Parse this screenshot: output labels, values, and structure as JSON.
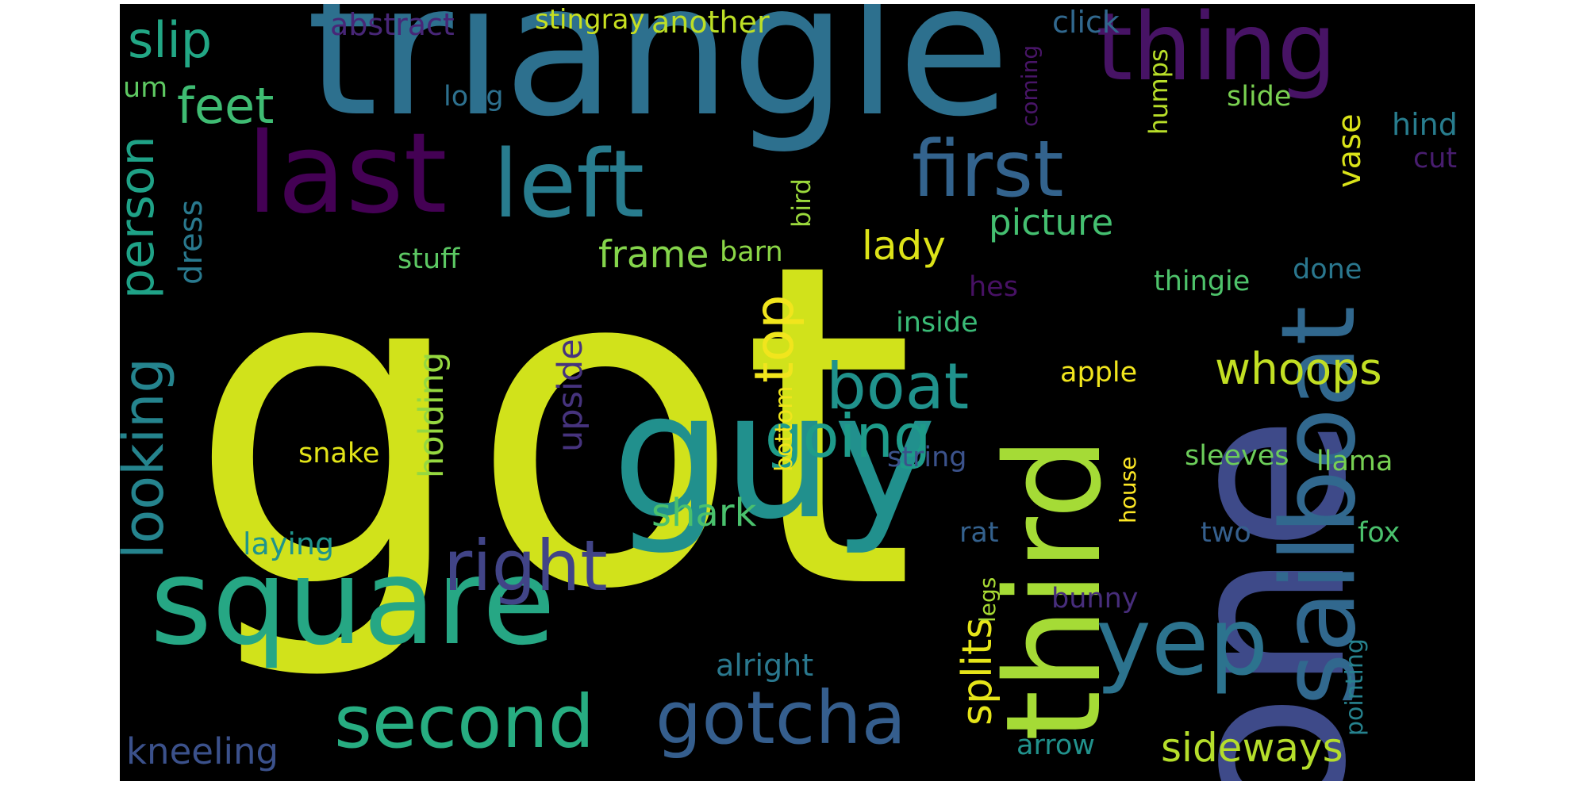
{
  "cloud": {
    "background": "#000000",
    "words": [
      {
        "text": "got",
        "color": "#d1e21b",
        "rotated": false
      },
      {
        "text": "one",
        "color": "#3e4a89",
        "rotated": true
      },
      {
        "text": "triangle",
        "color": "#2d708e",
        "rotated": false
      },
      {
        "text": "guy",
        "color": "#21908d",
        "rotated": false
      },
      {
        "text": "third",
        "color": "#a5db36",
        "rotated": true
      },
      {
        "text": "sailboat",
        "color": "#31688e",
        "rotated": true
      },
      {
        "text": "square",
        "color": "#26a784",
        "rotated": false
      },
      {
        "text": "last",
        "color": "#440154",
        "rotated": false
      },
      {
        "text": "thing",
        "color": "#471365",
        "rotated": false
      },
      {
        "text": "left",
        "color": "#287c8e",
        "rotated": false
      },
      {
        "text": "yep",
        "color": "#2c738e",
        "rotated": false
      },
      {
        "text": "first",
        "color": "#33638d",
        "rotated": false
      },
      {
        "text": "second",
        "color": "#27ad81",
        "rotated": false
      },
      {
        "text": "gotcha",
        "color": "#355e8d",
        "rotated": false
      },
      {
        "text": "right",
        "color": "#414487",
        "rotated": false
      },
      {
        "text": "looking",
        "color": "#25848e",
        "rotated": true
      },
      {
        "text": "person",
        "color": "#1fa287",
        "rotated": true
      },
      {
        "text": "boat",
        "color": "#20928c",
        "rotated": false
      },
      {
        "text": "going",
        "color": "#1e9b8a",
        "rotated": false
      },
      {
        "text": "top",
        "color": "#f1e51d",
        "rotated": true
      },
      {
        "text": "feet",
        "color": "#3fbc73",
        "rotated": false
      },
      {
        "text": "slip",
        "color": "#22a785",
        "rotated": false
      },
      {
        "text": "splits",
        "color": "#e5e419",
        "rotated": true
      },
      {
        "text": "whoops",
        "color": "#c2df23",
        "rotated": false
      },
      {
        "text": "sideways",
        "color": "#b5de2b",
        "rotated": false
      },
      {
        "text": "shark",
        "color": "#4ac16d",
        "rotated": false
      },
      {
        "text": "lady",
        "color": "#dde318",
        "rotated": false
      },
      {
        "text": "frame",
        "color": "#84d44b",
        "rotated": false
      },
      {
        "text": "picture",
        "color": "#44bf70",
        "rotated": false
      },
      {
        "text": "holding",
        "color": "#95d840",
        "rotated": true
      },
      {
        "text": "upside",
        "color": "#46337e",
        "rotated": true
      },
      {
        "text": "kneeling",
        "color": "#3b518b",
        "rotated": false
      },
      {
        "text": "dress",
        "color": "#29798e",
        "rotated": true
      },
      {
        "text": "vase",
        "color": "#dae319",
        "rotated": true
      },
      {
        "text": "abstract",
        "color": "#482677",
        "rotated": false
      },
      {
        "text": "another",
        "color": "#bddf26",
        "rotated": false
      },
      {
        "text": "stingray",
        "color": "#c8e020",
        "rotated": false
      },
      {
        "text": "click",
        "color": "#31688e",
        "rotated": false
      },
      {
        "text": "um",
        "color": "#5ec962",
        "rotated": false
      },
      {
        "text": "long",
        "color": "#2d708e",
        "rotated": false
      },
      {
        "text": "slide",
        "color": "#7ad151",
        "rotated": false
      },
      {
        "text": "hind",
        "color": "#287d8e",
        "rotated": false
      },
      {
        "text": "cut",
        "color": "#481d6f",
        "rotated": false
      },
      {
        "text": "humps",
        "color": "#b8de29",
        "rotated": true
      },
      {
        "text": "coming",
        "color": "#481567",
        "rotated": true
      },
      {
        "text": "bird",
        "color": "#9bd93c",
        "rotated": true
      },
      {
        "text": "barn",
        "color": "#8bd646",
        "rotated": false
      },
      {
        "text": "stuff",
        "color": "#5cc863",
        "rotated": false
      },
      {
        "text": "hes",
        "color": "#471164",
        "rotated": false
      },
      {
        "text": "thingie",
        "color": "#4ec36b",
        "rotated": false
      },
      {
        "text": "done",
        "color": "#2a778e",
        "rotated": false
      },
      {
        "text": "inside",
        "color": "#3aba76",
        "rotated": false
      },
      {
        "text": "apple",
        "color": "#f1e51d",
        "rotated": false
      },
      {
        "text": "snake",
        "color": "#e2e418",
        "rotated": false
      },
      {
        "text": "bottom",
        "color": "#efe51c",
        "rotated": true
      },
      {
        "text": "string",
        "color": "#3b528b",
        "rotated": false
      },
      {
        "text": "house",
        "color": "#fde725",
        "rotated": true
      },
      {
        "text": "sleeves",
        "color": "#6ccd5a",
        "rotated": false
      },
      {
        "text": "llama",
        "color": "#77d153",
        "rotated": false
      },
      {
        "text": "laying",
        "color": "#1f948c",
        "rotated": false
      },
      {
        "text": "rat",
        "color": "#34618d",
        "rotated": false
      },
      {
        "text": "two",
        "color": "#355f8d",
        "rotated": false
      },
      {
        "text": "fox",
        "color": "#4ac16d",
        "rotated": false
      },
      {
        "text": "legs",
        "color": "#a8db34",
        "rotated": true
      },
      {
        "text": "bunny",
        "color": "#472d7b",
        "rotated": false
      },
      {
        "text": "pointing",
        "color": "#26828e",
        "rotated": true
      },
      {
        "text": "alright",
        "color": "#2a788e",
        "rotated": false
      },
      {
        "text": "arrow",
        "color": "#21918c",
        "rotated": false
      }
    ]
  }
}
